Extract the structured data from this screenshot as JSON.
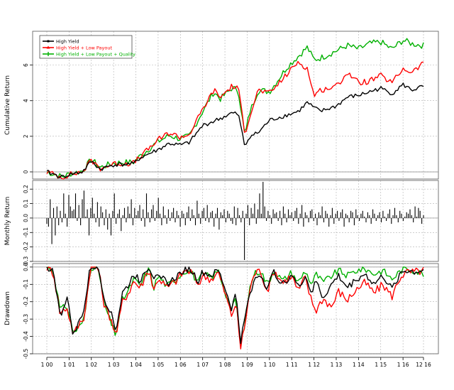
{
  "chart_data": [
    {
      "type": "line",
      "panel": "cumulative",
      "title": "",
      "xlabel": "",
      "ylabel": "Cumulative Return",
      "ylim": [
        -0.4,
        7.9
      ],
      "yticks": [
        0,
        2,
        4,
        6
      ],
      "grid": true,
      "legend_position": "top-left",
      "legend": [
        "High Yield",
        "High Yield + Low Payout",
        "High Yield + Low Payout + Quality"
      ],
      "x_tick_labels": [
        "1 00",
        "1 01",
        "1 02",
        "1 03",
        "1 04",
        "1 05",
        "1 06",
        "1 07",
        "1 08",
        "1 09",
        "1 10",
        "1 11",
        "1 12",
        "1 13",
        "1 14",
        "1 15",
        "1 16",
        "12 16"
      ],
      "x_years": [
        2000,
        2001,
        2002,
        2003,
        2004,
        2005,
        2006,
        2007,
        2008,
        2009,
        2010,
        2011,
        2012,
        2013,
        2014,
        2015,
        2016,
        2016.92
      ],
      "colors": {
        "High Yield": "#000000",
        "High Yield + Low Payout": "#ff0000",
        "High Yield + Low Payout + Quality": "#00b000"
      },
      "anchors_x": [
        2000,
        2000.7,
        2001,
        2001.6,
        2002.0,
        2002.4,
        2003.0,
        2003.9,
        2004.2,
        2005.0,
        2005.5,
        2006.0,
        2006.4,
        2007.0,
        2007.5,
        2007.8,
        2008.3,
        2008.6,
        2008.9,
        2009.1,
        2009.5,
        2010.0,
        2010.8,
        2011.3,
        2011.7,
        2012.0,
        2012.3,
        2013.0,
        2013.5,
        2014.0,
        2014.5,
        2015.0,
        2015.5,
        2016.0,
        2016.4,
        2016.92
      ],
      "series": [
        {
          "name": "High Yield",
          "color": "#000000",
          "anchors": [
            0,
            -0.3,
            -0.15,
            0,
            0.6,
            0.15,
            0.4,
            0.45,
            0.8,
            1.25,
            1.6,
            1.5,
            1.65,
            2.6,
            2.85,
            3.0,
            3.3,
            3.25,
            1.4,
            2.0,
            2.2,
            2.9,
            3.2,
            3.4,
            3.9,
            3.6,
            3.4,
            3.7,
            4.2,
            4.3,
            4.5,
            4.7,
            4.4,
            4.9,
            4.6,
            4.8
          ],
          "wiggle": 0.12
        },
        {
          "name": "High Yield + Low Payout",
          "color": "#ff0000",
          "anchors": [
            0,
            -0.3,
            -0.15,
            0,
            0.65,
            0.2,
            0.45,
            0.5,
            0.85,
            1.8,
            2.2,
            1.95,
            2.1,
            3.5,
            4.6,
            4.2,
            4.8,
            4.7,
            2.15,
            3.1,
            4.6,
            4.4,
            5.5,
            6.2,
            5.8,
            4.3,
            4.6,
            4.8,
            5.6,
            5.0,
            5.1,
            5.4,
            5.0,
            5.8,
            5.6,
            6.1
          ],
          "wiggle": 0.16
        },
        {
          "name": "High Yield + Low Payout + Quality",
          "color": "#00b000",
          "anchors": [
            0,
            -0.28,
            -0.12,
            0.05,
            0.7,
            0.25,
            0.5,
            0.55,
            0.9,
            1.7,
            2.05,
            1.85,
            2.0,
            3.4,
            4.5,
            4.1,
            4.7,
            4.6,
            2.0,
            3.3,
            4.6,
            4.5,
            5.9,
            6.5,
            7.0,
            6.3,
            6.4,
            6.8,
            7.1,
            6.9,
            7.2,
            7.3,
            6.9,
            7.4,
            7.2,
            7.1
          ],
          "wiggle": 0.18
        }
      ]
    },
    {
      "type": "bar",
      "panel": "monthly",
      "title": "",
      "ylabel": "Monthly Return",
      "ylim": [
        -0.3,
        0.26
      ],
      "yticks": [
        -0.3,
        -0.2,
        -0.1,
        0.0,
        0.1,
        0.2
      ],
      "ytick_labels": [
        "-0.3",
        "-0.2",
        "-0.1",
        "0.0",
        "0.1",
        "0.2"
      ],
      "grid": true,
      "color": "#000000",
      "values": [
        -0.04,
        -0.06,
        0.13,
        -0.18,
        0.07,
        -0.12,
        0.08,
        -0.05,
        0.05,
        -0.03,
        0.17,
        0.03,
        -0.06,
        0.16,
        0.08,
        0.05,
        0.06,
        0.17,
        -0.02,
        0.09,
        -0.05,
        0.13,
        0.19,
        0.01,
        0.06,
        -0.12,
        0.07,
        0.14,
        0.03,
        -0.03,
        0.11,
        -0.06,
        0.08,
        0.04,
        -0.05,
        0.06,
        -0.08,
        0.03,
        -0.12,
        0.05,
        0.17,
        -0.04,
        0.03,
        0.06,
        -0.09,
        0.02,
        0.07,
        -0.03,
        0.08,
        0.03,
        0.13,
        -0.05,
        0.07,
        0.02,
        0.05,
        0.09,
        -0.02,
        0.06,
        -0.06,
        0.17,
        0.04,
        -0.03,
        0.06,
        0.09,
        -0.02,
        0.05,
        0.14,
        0.03,
        -0.05,
        0.08,
        0.02,
        -0.04,
        0.06,
        -0.02,
        0.04,
        0.07,
        -0.03,
        0.05,
        0.02,
        -0.06,
        0.05,
        0.03,
        -0.05,
        0.04,
        0.08,
        -0.02,
        0.06,
        0.02,
        -0.05,
        0.12,
        0.03,
        -0.04,
        0.05,
        0.07,
        -0.02,
        0.09,
        -0.03,
        0.04,
        0.05,
        -0.06,
        0.03,
        0.07,
        -0.08,
        0.04,
        0.02,
        0.06,
        -0.03,
        0.05,
        0.03,
        -0.02,
        -0.04,
        0.08,
        -0.05,
        0.07,
        0.02,
        -0.03,
        0.05,
        -0.29,
        0.03,
        0.09,
        -0.05,
        0.07,
        0.03,
        0.1,
        -0.04,
        0.06,
        0.17,
        0.03,
        0.25,
        0.08,
        -0.02,
        0.05,
        0.02,
        -0.04,
        0.06,
        0.03,
        0.04,
        -0.02,
        0.05,
        -0.05,
        0.08,
        0.03,
        -0.03,
        0.06,
        0.02,
        0.04,
        -0.02,
        0.05,
        0.07,
        -0.04,
        0.03,
        0.09,
        -0.06,
        0.04,
        0.02,
        -0.03,
        0.05,
        0.06,
        -0.02,
        0.03,
        -0.05,
        0.04,
        0.02,
        0.08,
        -0.03,
        0.05,
        0.03,
        -0.06,
        0.02,
        0.07,
        -0.04,
        0.03,
        0.05,
        -0.02,
        0.04,
        0.06,
        -0.06,
        0.03,
        0.02,
        -0.03,
        0.05,
        0.04,
        -0.05,
        0.06,
        0.02,
        -0.02,
        0.03,
        0.05,
        0.01,
        -0.03,
        0.04,
        0.02,
        -0.04,
        0.06,
        0.03,
        -0.02,
        0.02,
        0.04,
        -0.03,
        0.05,
        0.01,
        -0.02,
        0.03,
        0.06,
        -0.04,
        0.02,
        0.07,
        0.02,
        -0.03,
        0.05,
        0.03,
        -0.02,
        0.01,
        0.04,
        0.03,
        0.06,
        0.02,
        -0.03,
        0.08,
        0.01,
        0.07,
        0.05,
        -0.04,
        0.02
      ]
    },
    {
      "type": "line",
      "panel": "drawdown",
      "title": "",
      "ylabel": "Drawdown",
      "ylim": [
        -0.5,
        0.02
      ],
      "yticks": [
        -0.5,
        -0.4,
        -0.3,
        -0.2,
        -0.1,
        0.0
      ],
      "ytick_labels": [
        "-0.5",
        "-0.4",
        "-0.3",
        "-0.2",
        "-0.1",
        "0.0"
      ],
      "grid": true,
      "anchors_x": [
        2000,
        2000.3,
        2000.6,
        2000.9,
        2001.2,
        2001.5,
        2001.7,
        2001.95,
        2002.3,
        2002.6,
        2002.9,
        2003.1,
        2003.4,
        2003.7,
        2003.9,
        2004.2,
        2004.4,
        2004.6,
        2004.8,
        2005.0,
        2005.4,
        2005.8,
        2006.2,
        2006.5,
        2006.8,
        2007.0,
        2007.4,
        2007.7,
        2008.0,
        2008.3,
        2008.5,
        2008.7,
        2008.9,
        2009.1,
        2009.3,
        2009.6,
        2009.9,
        2010.2,
        2010.6,
        2011.0,
        2011.3,
        2011.6,
        2011.9,
        2012.1,
        2012.4,
        2012.8,
        2013.1,
        2013.5,
        2013.9,
        2014.3,
        2014.7,
        2015.1,
        2015.5,
        2015.9,
        2016.2,
        2016.5,
        2016.92
      ],
      "series": [
        {
          "name": "High Yield",
          "color": "#000000",
          "anchors": [
            0,
            -0.02,
            -0.29,
            -0.17,
            -0.4,
            -0.3,
            -0.23,
            0,
            0,
            -0.19,
            -0.26,
            -0.37,
            -0.15,
            -0.1,
            -0.04,
            -0.08,
            -0.02,
            0,
            -0.06,
            -0.02,
            -0.1,
            -0.06,
            -0.01,
            -0.02,
            -0.08,
            -0.03,
            -0.05,
            -0.02,
            -0.12,
            -0.24,
            -0.15,
            -0.43,
            -0.3,
            -0.16,
            -0.08,
            -0.04,
            -0.12,
            -0.03,
            -0.1,
            -0.04,
            -0.12,
            -0.05,
            -0.15,
            -0.08,
            -0.18,
            -0.1,
            -0.05,
            -0.12,
            -0.07,
            -0.04,
            -0.1,
            -0.05,
            -0.13,
            -0.03,
            -0.02,
            -0.03,
            -0.02
          ],
          "wiggle": 0.02
        },
        {
          "name": "High Yield + Low Payout",
          "color": "#ff0000",
          "anchors": [
            0,
            -0.03,
            -0.27,
            -0.23,
            -0.39,
            -0.32,
            -0.28,
            0,
            0,
            -0.23,
            -0.3,
            -0.4,
            -0.2,
            -0.14,
            -0.08,
            -0.12,
            -0.06,
            -0.01,
            -0.14,
            -0.06,
            -0.12,
            -0.08,
            -0.02,
            -0.03,
            -0.1,
            -0.05,
            -0.07,
            -0.03,
            -0.15,
            -0.28,
            -0.2,
            -0.47,
            -0.33,
            -0.15,
            -0.04,
            -0.02,
            -0.14,
            -0.02,
            -0.09,
            -0.05,
            -0.14,
            -0.06,
            -0.2,
            -0.25,
            -0.18,
            -0.23,
            -0.14,
            -0.19,
            -0.13,
            -0.09,
            -0.15,
            -0.1,
            -0.17,
            -0.05,
            -0.03,
            -0.03,
            -0.02
          ],
          "wiggle": 0.025
        },
        {
          "name": "High Yield + Low Payout + Quality",
          "color": "#00b000",
          "anchors": [
            0,
            -0.02,
            -0.25,
            -0.22,
            -0.38,
            -0.34,
            -0.29,
            0,
            0,
            -0.22,
            -0.33,
            -0.39,
            -0.19,
            -0.13,
            -0.07,
            -0.11,
            -0.05,
            -0.01,
            -0.12,
            -0.05,
            -0.11,
            -0.07,
            -0.02,
            -0.03,
            -0.09,
            -0.04,
            -0.06,
            -0.02,
            -0.14,
            -0.25,
            -0.18,
            -0.46,
            -0.32,
            -0.13,
            -0.04,
            -0.02,
            -0.1,
            -0.02,
            -0.08,
            -0.03,
            -0.09,
            -0.02,
            -0.1,
            -0.04,
            -0.09,
            -0.05,
            -0.02,
            -0.05,
            -0.02,
            -0.01,
            -0.04,
            -0.02,
            -0.07,
            -0.02,
            -0.01,
            -0.02,
            -0.04
          ],
          "wiggle": 0.02
        }
      ]
    }
  ]
}
